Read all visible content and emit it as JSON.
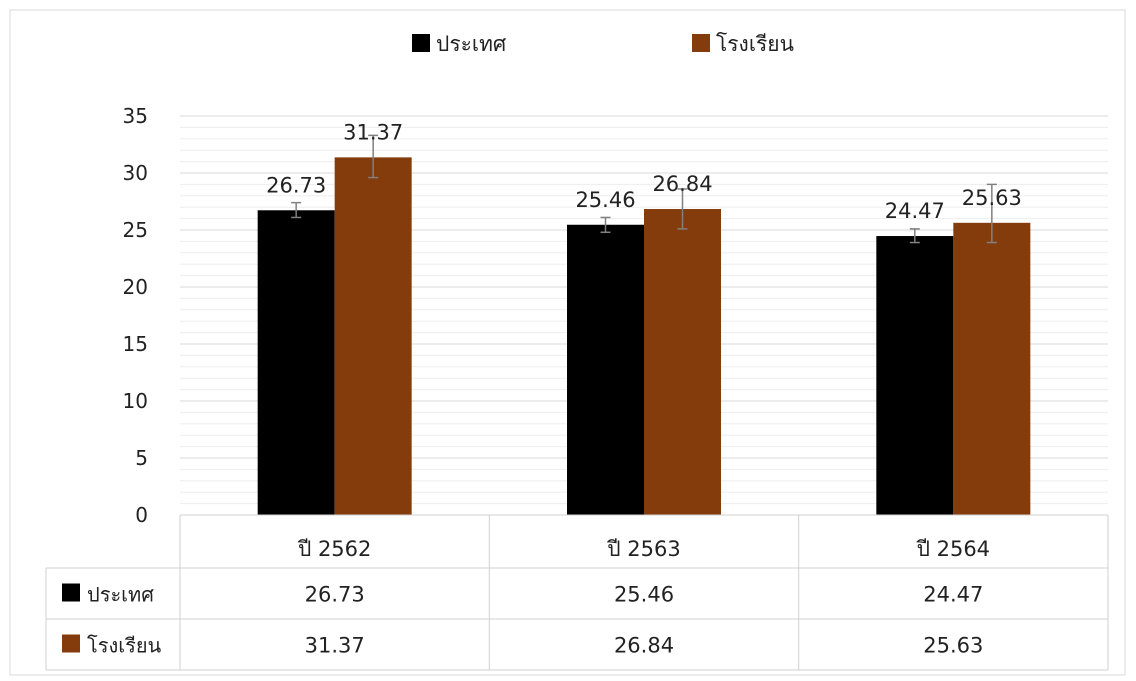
{
  "chart_data": {
    "type": "bar",
    "categories": [
      "ปี 2562",
      "ปี 2563",
      "ปี 2564"
    ],
    "series": [
      {
        "name": "ประเทศ",
        "color": "#000000",
        "values": [
          26.73,
          25.46,
          24.47
        ],
        "error_low": [
          26.1,
          24.8,
          23.9
        ],
        "error_high": [
          27.4,
          26.1,
          25.1
        ]
      },
      {
        "name": "โรงเรียน",
        "color": "#843C0C",
        "values": [
          31.37,
          26.84,
          25.63
        ],
        "error_low": [
          29.6,
          25.1,
          23.9
        ],
        "error_high": [
          33.3,
          28.6,
          29.0
        ]
      }
    ],
    "error_bar_color": "#808080",
    "ylim": [
      0,
      35
    ],
    "yticks": [
      "0",
      "5",
      "10",
      "15",
      "20",
      "25",
      "30",
      "35"
    ],
    "minor_gridline_step": 1,
    "grid": true,
    "legend": "top-center",
    "data_table": {
      "rows": [
        {
          "label": "ประเทศ",
          "cells": [
            "26.73",
            "25.46",
            "24.47"
          ]
        },
        {
          "label": "โรงเรียน",
          "cells": [
            "31.37",
            "26.84",
            "25.63"
          ]
        }
      ]
    }
  }
}
